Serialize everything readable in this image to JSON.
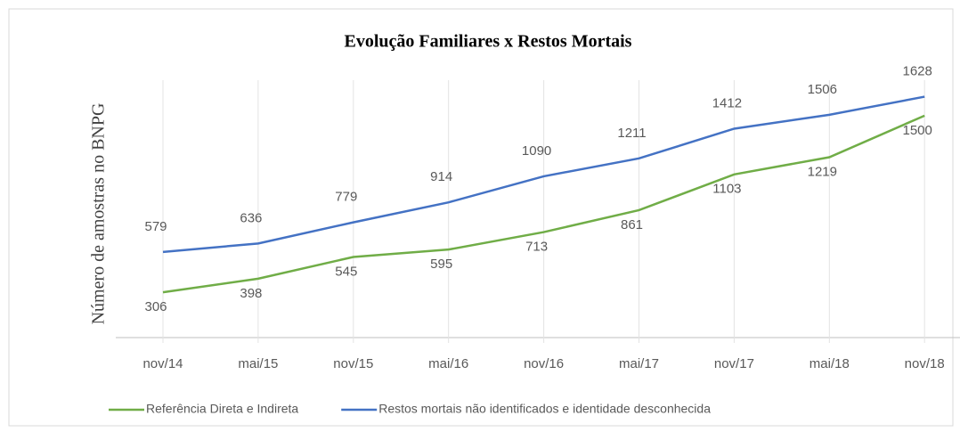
{
  "chart_data": {
    "type": "line",
    "title": "Evolução  Familiares  x Restos Mortais",
    "y_label": "Número de amostras no BNPG",
    "categories": [
      "nov/14",
      "mai/15",
      "nov/15",
      "mai/16",
      "nov/16",
      "mai/17",
      "nov/17",
      "mai/18",
      "nov/18"
    ],
    "series": [
      {
        "name": "Referência Direta e Indireta",
        "color": "#70ad47",
        "values": [
          306,
          398,
          545,
          595,
          713,
          861,
          1103,
          1219,
          1500
        ]
      },
      {
        "name": "Restos mortais não identificados e identidade desconhecida",
        "color": "#4472c4",
        "values": [
          579,
          636,
          779,
          914,
          1090,
          1211,
          1412,
          1506,
          1628
        ]
      }
    ],
    "ylim": [
      0,
      1800
    ],
    "legend": "bottom"
  }
}
